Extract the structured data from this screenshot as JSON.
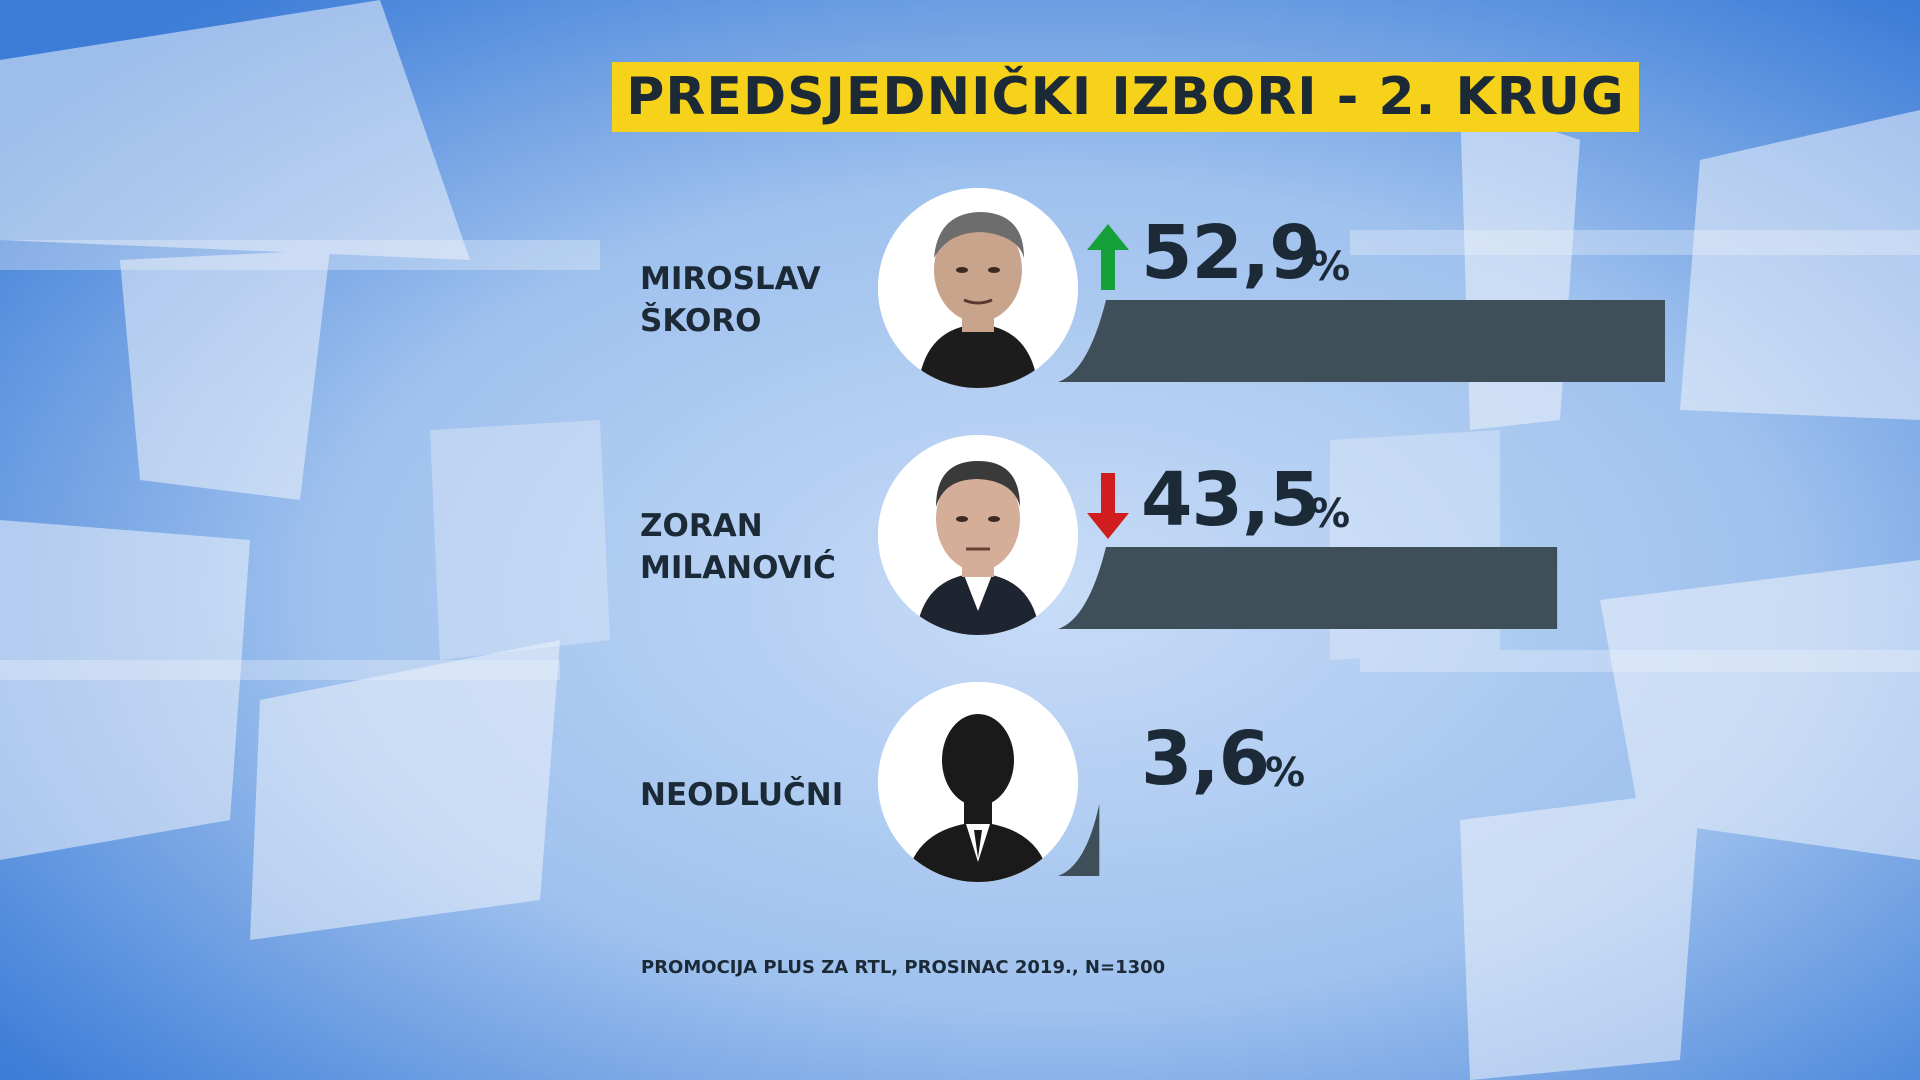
{
  "title": "PREDSJEDNIČKI IZBORI - 2. KRUG",
  "source": "PROMOCIJA PLUS ZA RTL, PROSINAC 2019., N=1300",
  "colors": {
    "title_bg": "#f7d21b",
    "bar": "#3f4f5a",
    "text": "#1b2a36",
    "arrow_up": "#16a03a",
    "arrow_down": "#d01d1d"
  },
  "chart_data": {
    "type": "bar",
    "orientation": "horizontal",
    "title": "PREDSJEDNIČKI IZBORI - 2. KRUG",
    "categories": [
      "MIROSLAV ŠKORO",
      "ZORAN MILANOVIĆ",
      "NEODLUČNI"
    ],
    "values": [
      52.9,
      43.5,
      3.6
    ],
    "value_labels": [
      "52,9",
      "43,5",
      "3,6"
    ],
    "unit": "%",
    "trend": [
      "up",
      "down",
      "none"
    ],
    "xlim": [
      0,
      60
    ],
    "grid": false
  },
  "candidates": [
    {
      "first": "MIROSLAV",
      "last": "ŠKORO",
      "avatar_icon": "person-photo-icon"
    },
    {
      "first": "ZORAN",
      "last": "MILANOVIĆ",
      "avatar_icon": "person-photo-icon"
    },
    {
      "first": "NEODLUČNI",
      "last": "",
      "avatar_icon": "silhouette-icon"
    }
  ]
}
